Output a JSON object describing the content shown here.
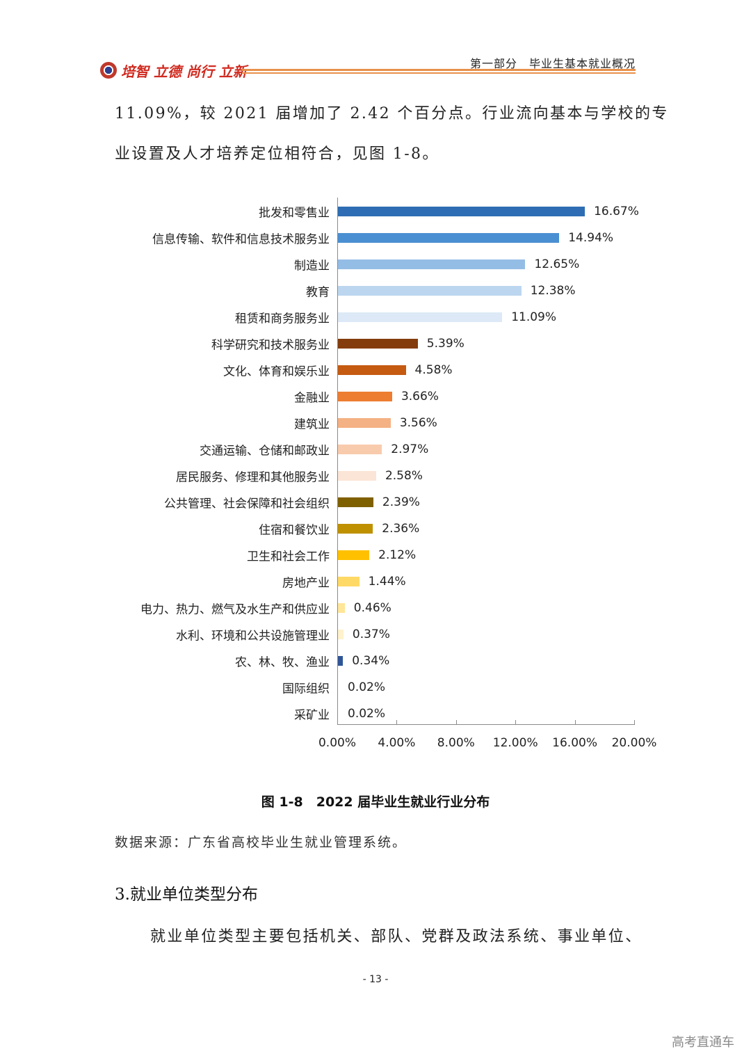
{
  "header": {
    "logo_text": "培智 立德 尚行 立新",
    "section_title": "第一部分　毕业生基本就业概况"
  },
  "body": {
    "para_line1": "11.09%，较 2021 届增加了 2.42 个百分点。行业流向基本与学校的专",
    "para_line2": "业设置及人才培养定位相符合，见图 1-8。",
    "caption": "图 1-8　2022 届毕业生就业行业分布",
    "source": "数据来源：广东省高校毕业生就业管理系统。",
    "heading": "3.就业单位类型分布",
    "para_line3": "就业单位类型主要包括机关、部队、党群及政法系统、事业单位、"
  },
  "footer": {
    "page_number": "- 13 -",
    "watermark": "高考直通车"
  },
  "chart_data": {
    "type": "bar",
    "orientation": "horizontal",
    "title": "图 1-8　2022 届毕业生就业行业分布",
    "xlabel": "",
    "ylabel": "",
    "xlim": [
      0,
      20
    ],
    "xticks": [
      "0.00%",
      "4.00%",
      "8.00%",
      "12.00%",
      "16.00%",
      "20.00%"
    ],
    "grid": false,
    "legend": null,
    "categories": [
      "批发和零售业",
      "信息传输、软件和信息技术服务业",
      "制造业",
      "教育",
      "租赁和商务服务业",
      "科学研究和技术服务业",
      "文化、体育和娱乐业",
      "金融业",
      "建筑业",
      "交通运输、仓储和邮政业",
      "居民服务、修理和其他服务业",
      "公共管理、社会保障和社会组织",
      "住宿和餐饮业",
      "卫生和社会工作",
      "房地产业",
      "电力、热力、燃气及水生产和供应业",
      "水利、环境和公共设施管理业",
      "农、林、牧、渔业",
      "国际组织",
      "采矿业"
    ],
    "values": [
      16.67,
      14.94,
      12.65,
      12.38,
      11.09,
      5.39,
      4.58,
      3.66,
      3.56,
      2.97,
      2.58,
      2.39,
      2.36,
      2.12,
      1.44,
      0.46,
      0.37,
      0.34,
      0.02,
      0.02
    ],
    "value_labels": [
      "16.67%",
      "14.94%",
      "12.65%",
      "12.38%",
      "11.09%",
      "5.39%",
      "4.58%",
      "3.66%",
      "3.56%",
      "2.97%",
      "2.58%",
      "2.39%",
      "2.36%",
      "2.12%",
      "1.44%",
      "0.46%",
      "0.37%",
      "0.34%",
      "0.02%",
      "0.02%"
    ],
    "colors": [
      "#2e6db3",
      "#4a8fd1",
      "#94bde6",
      "#bcd6ef",
      "#dde9f6",
      "#843c0c",
      "#c55a11",
      "#ed7d31",
      "#f4b183",
      "#f8cbad",
      "#fbe5d6",
      "#7f6000",
      "#bf9000",
      "#ffc000",
      "#ffd966",
      "#ffe699",
      "#fff2cc",
      "#2f5597",
      "#ffffff",
      "#ffffff"
    ]
  }
}
